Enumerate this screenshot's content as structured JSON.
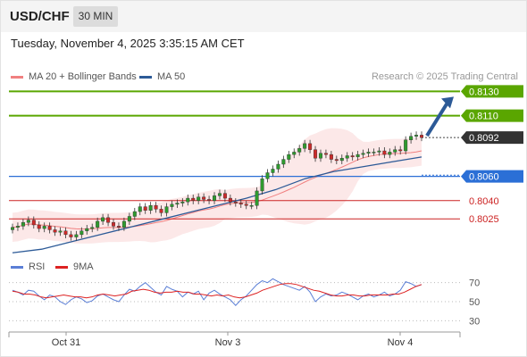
{
  "header": {
    "symbol": "USD/CHF",
    "timeframe": "30 MIN"
  },
  "timestamp": "Tuesday, November 4, 2025 3:35:15 AM CET",
  "legend": {
    "bollinger": "MA 20 + Bollinger Bands",
    "ma50": "MA 50"
  },
  "credit": "Research © 2025 Trading Central",
  "rsi_legend": {
    "rsi": "RSI",
    "ma9": "9MA"
  },
  "colors": {
    "resistance": "#5aa600",
    "support": "#2b6fd6",
    "minor_support": "#cc2222",
    "bollinger": "#f08080",
    "ma50": "#2c5a97",
    "rsi": "#5b7fd6",
    "rsi_ma": "#dd2222",
    "arrow": "#2c5a97"
  },
  "chart_data": [
    {
      "type": "line",
      "title": "USD/CHF 30 MIN",
      "x_ticks": [
        "Oct 31",
        "Nov 3",
        "Nov 4"
      ],
      "ylim": [
        0.7995,
        0.8145
      ],
      "current_price": 0.8092,
      "levels": [
        {
          "value": 0.813,
          "label": "0.8130",
          "kind": "resistance"
        },
        {
          "value": 0.811,
          "label": "0.8110",
          "kind": "resistance"
        },
        {
          "value": 0.8092,
          "label": "0.8092",
          "kind": "current"
        },
        {
          "value": 0.806,
          "label": "0.8060",
          "kind": "pivot"
        },
        {
          "value": 0.804,
          "label": "0.8040",
          "kind": "support"
        },
        {
          "value": 0.8025,
          "label": "0.8025",
          "kind": "support"
        }
      ],
      "series": [
        {
          "name": "USD/CHF",
          "close": [
            0.8018,
            0.8019,
            0.8022,
            0.8024,
            0.802,
            0.8017,
            0.8019,
            0.8016,
            0.8014,
            0.8015,
            0.8012,
            0.801,
            0.8012,
            0.8015,
            0.8017,
            0.8018,
            0.8023,
            0.8026,
            0.8022,
            0.8019,
            0.8018,
            0.8023,
            0.8027,
            0.8031,
            0.8035,
            0.8032,
            0.8036,
            0.8033,
            0.803,
            0.8035,
            0.8037,
            0.8038,
            0.8039,
            0.8042,
            0.804,
            0.8043,
            0.8041,
            0.804,
            0.8044,
            0.8046,
            0.8042,
            0.8039,
            0.8038,
            0.8037,
            0.8036,
            0.8036,
            0.8048,
            0.8058,
            0.8063,
            0.8066,
            0.807,
            0.8074,
            0.8078,
            0.808,
            0.8083,
            0.8087,
            0.8082,
            0.8075,
            0.8079,
            0.8078,
            0.8074,
            0.8073,
            0.8075,
            0.8077,
            0.8076,
            0.8078,
            0.8079,
            0.808,
            0.808,
            0.8081,
            0.8078,
            0.808,
            0.8082,
            0.8081,
            0.809,
            0.8093,
            0.8094,
            0.8092
          ]
        },
        {
          "name": "MA 50",
          "values": [
            0.7997,
            0.8,
            0.8006,
            0.8012,
            0.8018,
            0.8024,
            0.803,
            0.8036,
            0.8042,
            0.8049,
            0.8058,
            0.8064,
            0.8068,
            0.8072,
            0.8076
          ]
        }
      ]
    },
    {
      "type": "line",
      "title": "RSI",
      "y_ticks": [
        30,
        50,
        70
      ],
      "ylim": [
        20,
        80
      ],
      "series": [
        {
          "name": "RSI",
          "values": [
            62,
            60,
            57,
            62,
            61,
            56,
            52,
            57,
            55,
            50,
            47,
            52,
            55,
            53,
            49,
            51,
            56,
            58,
            55,
            52,
            50,
            57,
            63,
            61,
            66,
            70,
            65,
            60,
            57,
            66,
            63,
            61,
            55,
            60,
            58,
            61,
            52,
            59,
            62,
            58,
            55,
            52,
            46,
            52,
            56,
            62,
            68,
            72,
            70,
            74,
            71,
            68,
            66,
            64,
            62,
            66,
            60,
            50,
            55,
            58,
            56,
            57,
            60,
            58,
            55,
            52,
            56,
            58,
            55,
            57,
            60,
            56,
            58,
            62,
            71,
            69,
            66,
            68
          ]
        },
        {
          "name": "9MA",
          "values": [
            61,
            60,
            58,
            58,
            57,
            55,
            54,
            55,
            56,
            57,
            56,
            55,
            55,
            54,
            55,
            57,
            58,
            57,
            56,
            57,
            58,
            61,
            62,
            63,
            62,
            60,
            59,
            60,
            60,
            61,
            60,
            60,
            58,
            58,
            57,
            56,
            57,
            56,
            57,
            55,
            54,
            55,
            57,
            59,
            62,
            64,
            66,
            68,
            69,
            69,
            68,
            66,
            64,
            62,
            61,
            59,
            57,
            56,
            56,
            57,
            57,
            56,
            56,
            57,
            57,
            57,
            57,
            58,
            58,
            60,
            63,
            66,
            68
          ]
        }
      ]
    }
  ]
}
